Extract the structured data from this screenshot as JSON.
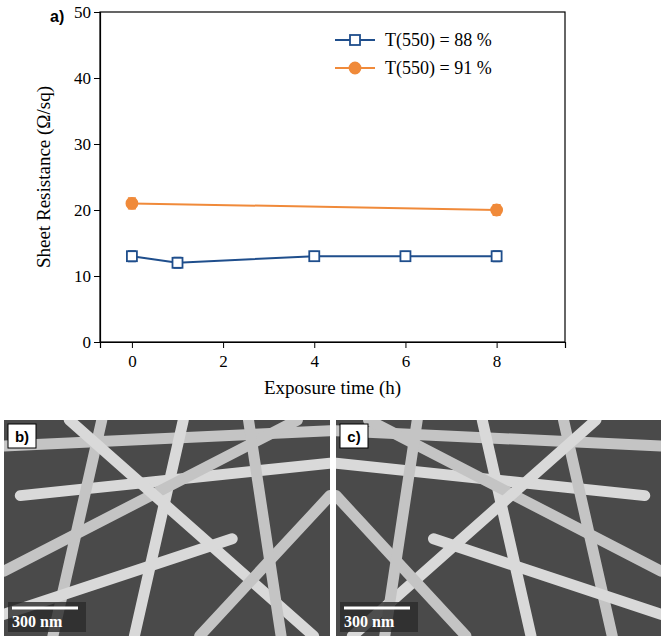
{
  "panels": [
    {
      "label": "a)"
    },
    {
      "label": "b)",
      "scale_bar": "300 nm"
    },
    {
      "label": "c)",
      "scale_bar": "300 nm"
    }
  ],
  "chart_data": {
    "type": "line",
    "x_label": "Exposure time (h)",
    "y_label": "Sheet Resistance (Ω/sq)",
    "xlim": [
      -0.7,
      9.5
    ],
    "xticks": [
      0,
      2,
      4,
      6,
      8
    ],
    "ylim": [
      0,
      50
    ],
    "yticks": [
      0,
      10,
      20,
      30,
      40,
      50
    ],
    "legend": "top-right",
    "series": [
      {
        "name": "T(550) = 88 %",
        "color": "#1f4e8c",
        "marker": "square",
        "x": [
          0,
          1,
          4,
          6,
          8
        ],
        "values": [
          13,
          12,
          13,
          13,
          13
        ],
        "error": [
          0.8,
          0.8,
          0.7,
          0.7,
          0.8
        ]
      },
      {
        "name": "T(550) = 91 %",
        "color": "#f08a3a",
        "marker": "circle",
        "x": [
          0,
          8
        ],
        "values": [
          21,
          20
        ],
        "error": [
          0.8,
          0.8
        ]
      }
    ]
  }
}
